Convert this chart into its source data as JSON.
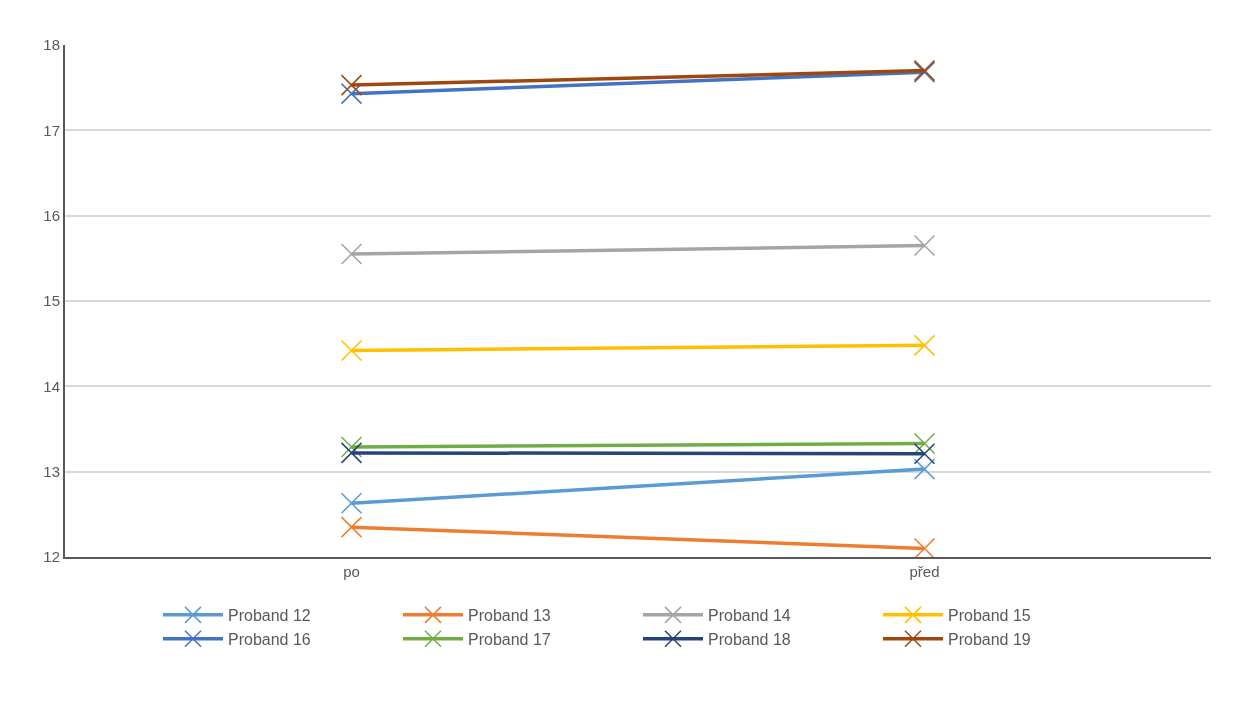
{
  "chart_data": {
    "type": "line",
    "categories": [
      "po",
      "před"
    ],
    "ylim": [
      12,
      18
    ],
    "yticks": [
      12,
      13,
      14,
      15,
      16,
      17,
      18
    ],
    "grid": "y",
    "legend": "bottom",
    "marker": "cross",
    "line_style": "solid",
    "series": [
      {
        "name": "Proband 12",
        "color": "#5b9bd5",
        "values": [
          12.63,
          13.03
        ]
      },
      {
        "name": "Proband 13",
        "color": "#ed7d31",
        "values": [
          12.35,
          12.1
        ]
      },
      {
        "name": "Proband 14",
        "color": "#a5a5a5",
        "values": [
          15.55,
          15.65
        ]
      },
      {
        "name": "Proband 15",
        "color": "#ffc000",
        "values": [
          14.42,
          14.48
        ]
      },
      {
        "name": "Proband 16",
        "color": "#4472c4",
        "values": [
          17.43,
          17.68
        ]
      },
      {
        "name": "Proband 17",
        "color": "#70ad47",
        "values": [
          13.29,
          13.33
        ]
      },
      {
        "name": "Proband 18",
        "color": "#264478",
        "values": [
          13.22,
          13.21
        ]
      },
      {
        "name": "Proband 19",
        "color": "#9e480e",
        "values": [
          17.53,
          17.7
        ]
      }
    ]
  }
}
